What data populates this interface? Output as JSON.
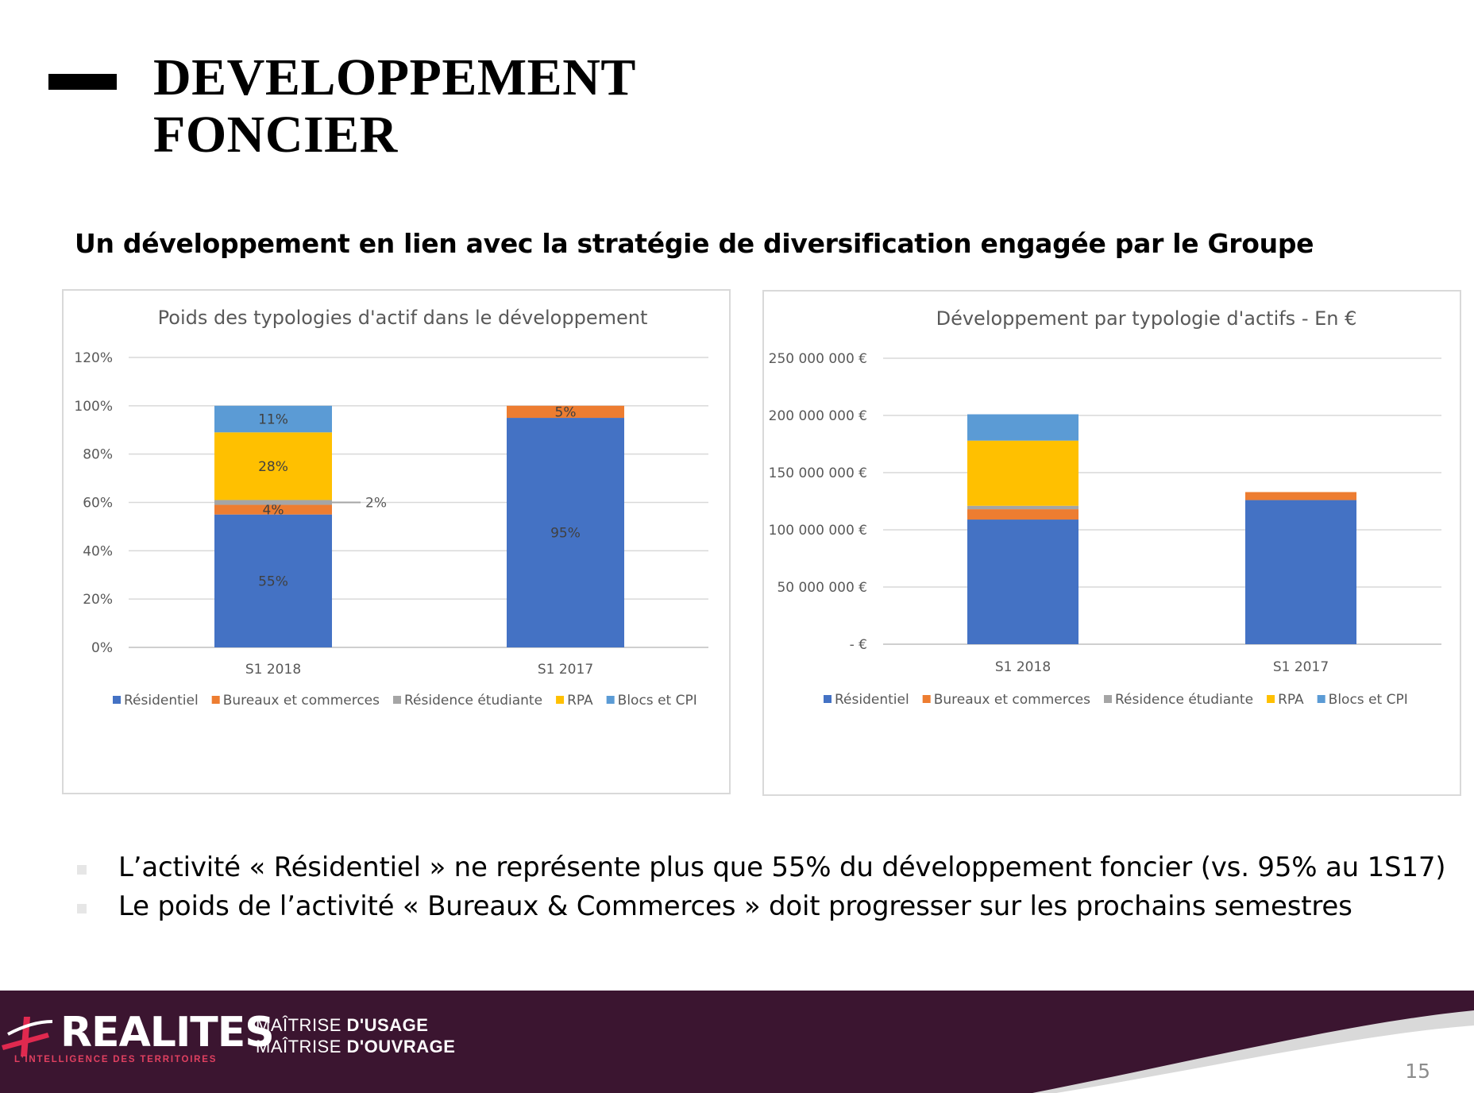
{
  "title": {
    "line1": "DEVELOPPEMENT",
    "line2": "FONCIER"
  },
  "subtitle": "Un développement en lien avec la stratégie de diversification engagée par le Groupe",
  "colors": {
    "Résidentiel": "#4472c4",
    "Bureaux et commerces": "#ed7d31",
    "Résidence étudiante": "#a5a5a5",
    "RPA": "#ffc000",
    "Blocs et CPI": "#5b9bd5"
  },
  "chart_data": [
    {
      "type": "bar",
      "stacked": true,
      "title": "Poids des typologies d'actif dans le développement",
      "categories": [
        "S1 2018",
        "S1 2017"
      ],
      "ylim": [
        0,
        120
      ],
      "yticks": [
        "0%",
        "20%",
        "40%",
        "60%",
        "80%",
        "100%",
        "120%"
      ],
      "legend_position": "bottom",
      "grid": true,
      "series": [
        {
          "name": "Résidentiel",
          "values": [
            55,
            95
          ],
          "labels": [
            "55%",
            "95%"
          ]
        },
        {
          "name": "Bureaux et commerces",
          "values": [
            4,
            5
          ],
          "labels": [
            "4%",
            "5%"
          ]
        },
        {
          "name": "Résidence étudiante",
          "values": [
            2,
            0
          ],
          "labels": [
            "2%",
            ""
          ]
        },
        {
          "name": "RPA",
          "values": [
            28,
            0
          ],
          "labels": [
            "28%",
            ""
          ]
        },
        {
          "name": "Blocs et CPI",
          "values": [
            11,
            0
          ],
          "labels": [
            "11%",
            ""
          ]
        }
      ]
    },
    {
      "type": "bar",
      "stacked": true,
      "title": "Développement par typologie d'actifs - En €",
      "categories": [
        "S1 2018",
        "S1 2017"
      ],
      "ylim": [
        0,
        250000000
      ],
      "yticks": [
        "- €",
        "50 000 000 €",
        "100 000 000 €",
        "150 000 000 €",
        "200 000 000 €",
        "250 000 000 €"
      ],
      "legend_position": "bottom",
      "grid": true,
      "series": [
        {
          "name": "Résidentiel",
          "values": [
            109000000,
            126000000
          ]
        },
        {
          "name": "Bureaux et commerces",
          "values": [
            9000000,
            7000000
          ]
        },
        {
          "name": "Résidence étudiante",
          "values": [
            3000000,
            0
          ]
        },
        {
          "name": "RPA",
          "values": [
            57000000,
            0
          ]
        },
        {
          "name": "Blocs et CPI",
          "values": [
            23000000,
            0
          ]
        }
      ]
    }
  ],
  "bullets": [
    "L’activité « Résidentiel » ne représente plus que 55% du développement foncier (vs. 95% au 1S17)",
    "Le poids de l’activité « Bureaux & Commerces » doit progresser sur les prochains semestres"
  ],
  "footer": {
    "brand": "REALITES",
    "brand_tagline": "L'INTELLIGENCE DES TERRITOIRES",
    "motto_line1_a": "MAÎTRISE",
    "motto_line1_b": "D'USAGE",
    "motto_line2_a": "MAÎTRISE",
    "motto_line2_b": "D'OUVRAGE",
    "page_number": "15"
  }
}
